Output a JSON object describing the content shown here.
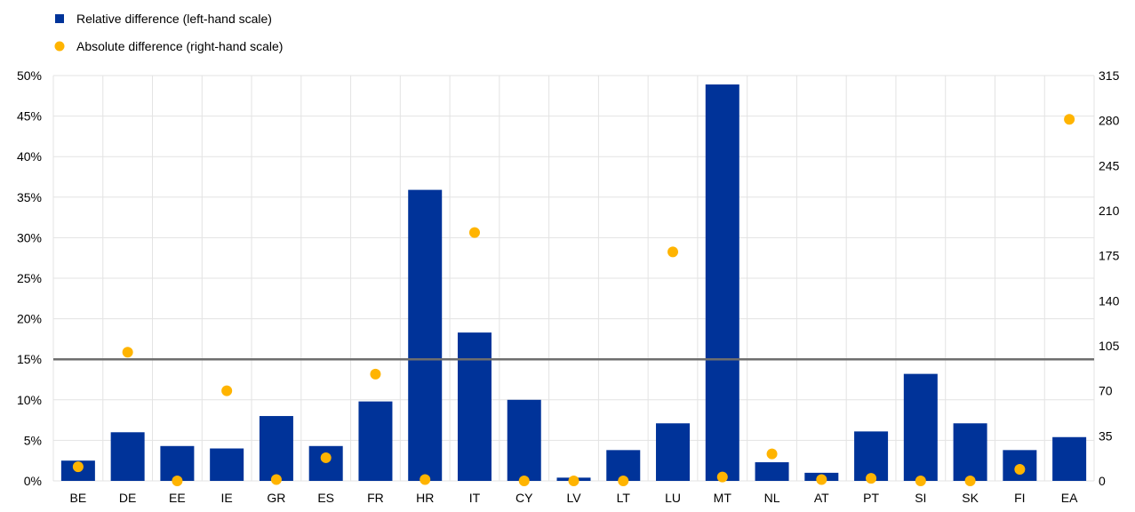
{
  "chart_data": {
    "type": "bar",
    "legend_placement": "top-left",
    "grid": true,
    "categories": [
      "BE",
      "DE",
      "EE",
      "IE",
      "GR",
      "ES",
      "FR",
      "HR",
      "IT",
      "CY",
      "LV",
      "LT",
      "LU",
      "MT",
      "NL",
      "AT",
      "PT",
      "SI",
      "SK",
      "FI",
      "EA"
    ],
    "series": [
      {
        "name": "Relative difference (left-hand scale)",
        "type": "bar",
        "axis": "left",
        "unit": "%",
        "color": "#003399",
        "values": [
          2.5,
          6.0,
          4.3,
          4.0,
          8.0,
          4.3,
          9.8,
          35.9,
          18.3,
          10.0,
          0.4,
          3.8,
          7.1,
          48.9,
          2.3,
          1.0,
          6.1,
          13.2,
          7.1,
          3.8,
          5.4
        ]
      },
      {
        "name": "Absolute difference (right-hand scale)",
        "type": "scatter",
        "axis": "right",
        "color": "#FFB400",
        "values": [
          11,
          100,
          0,
          70,
          1,
          18,
          83,
          1,
          193,
          0,
          0,
          0,
          178,
          3,
          21,
          1,
          2,
          0,
          0,
          9,
          281
        ]
      }
    ],
    "reference_line": {
      "axis": "left",
      "value": 15,
      "color": "#6e6e6e"
    },
    "y_left": {
      "min": 0,
      "max": 50,
      "ticks": [
        "0%",
        "5%",
        "10%",
        "15%",
        "20%",
        "25%",
        "30%",
        "35%",
        "40%",
        "45%",
        "50%"
      ]
    },
    "y_right": {
      "min": 0,
      "max": 315,
      "ticks": [
        "0",
        "35",
        "70",
        "105",
        "140",
        "175",
        "210",
        "245",
        "280",
        "315"
      ]
    }
  }
}
